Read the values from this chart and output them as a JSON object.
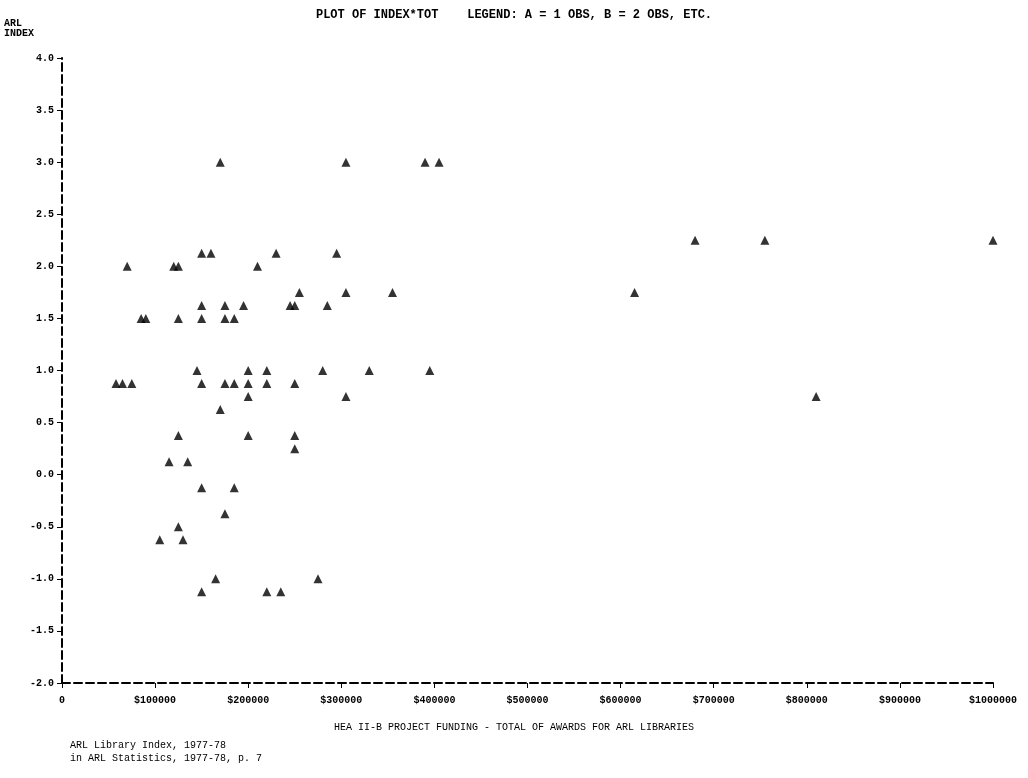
{
  "chart_data": {
    "type": "scatter",
    "title": "PLOT OF INDEX*TOT    LEGEND: A = 1 OBS, B = 2 OBS, ETC.",
    "ylabel": "ARL INDEX",
    "xlabel": "HEA II-B PROJECT FUNDING - TOTAL OF AWARDS FOR ARL LIBRARIES",
    "annotations": [
      "ARL Library Index, 1977-78",
      "in ARL Statistics, 1977-78, p. 7"
    ],
    "series": [
      {
        "color": "#000000",
        "x": [
          170000,
          305000,
          390000,
          405000,
          150000,
          160000,
          230000,
          295000,
          70000,
          120000,
          125000,
          210000,
          255000,
          305000,
          355000,
          150000,
          175000,
          195000,
          245000,
          250000,
          285000,
          85000,
          90000,
          125000,
          150000,
          175000,
          185000,
          145000,
          200000,
          220000,
          280000,
          330000,
          395000,
          58000,
          65000,
          75000,
          150000,
          175000,
          185000,
          200000,
          220000,
          250000,
          200000,
          305000,
          170000,
          125000,
          200000,
          250000,
          250000,
          115000,
          135000,
          150000,
          185000,
          175000,
          125000,
          105000,
          130000,
          165000,
          275000,
          150000,
          220000,
          235000,
          680000,
          755000,
          1000000,
          615000,
          810000
        ],
        "values": [
          3,
          3,
          3,
          3,
          2.125,
          2.125,
          2.125,
          2.125,
          2,
          2,
          2,
          2,
          1.75,
          1.75,
          1.75,
          1.625,
          1.625,
          1.625,
          1.625,
          1.625,
          1.625,
          1.5,
          1.5,
          1.5,
          1.5,
          1.5,
          1.5,
          1,
          1,
          1,
          1,
          1,
          1,
          0.875,
          0.875,
          0.875,
          0.875,
          0.875,
          0.875,
          0.875,
          0.875,
          0.875,
          0.75,
          0.75,
          0.625,
          0.375,
          0.375,
          0.375,
          0.25,
          0.125,
          0.125,
          -0.125,
          -0.125,
          -0.375,
          -0.5,
          -0.625,
          -0.625,
          -1,
          -1,
          -1.125,
          -1.125,
          -1.125,
          2.25,
          2.25,
          2.25,
          1.75,
          0.75
        ]
      }
    ],
    "marker": "triangle",
    "grid": false,
    "xlim": [
      0,
      1000000
    ],
    "xticks": [
      {
        "value": 0,
        "label": "0"
      },
      {
        "value": 100000,
        "label": "$100000"
      },
      {
        "value": 200000,
        "label": "$200000"
      },
      {
        "value": 300000,
        "label": "$300000"
      },
      {
        "value": 400000,
        "label": "$400000"
      },
      {
        "value": 500000,
        "label": "$500000"
      },
      {
        "value": 600000,
        "label": "$600000"
      },
      {
        "value": 700000,
        "label": "$700000"
      },
      {
        "value": 800000,
        "label": "$800000"
      },
      {
        "value": 900000,
        "label": "$900000"
      },
      {
        "value": 1000000,
        "label": "$1000000"
      }
    ],
    "ylim": [
      -2,
      4
    ],
    "yticks": [
      {
        "value": -2,
        "label": "-2.0"
      },
      {
        "value": -1.5,
        "label": "-1.5"
      },
      {
        "value": -1,
        "label": "-1.0"
      },
      {
        "value": -0.5,
        "label": "-0.5"
      },
      {
        "value": 0,
        "label": "0.0"
      },
      {
        "value": 0.5,
        "label": "0.5"
      },
      {
        "value": 1,
        "label": "1.0"
      },
      {
        "value": 1.5,
        "label": "1.5"
      },
      {
        "value": 2,
        "label": "2.0"
      },
      {
        "value": 2.5,
        "label": "2.5"
      },
      {
        "value": 3,
        "label": "3.0"
      },
      {
        "value": 3.5,
        "label": "3.5"
      },
      {
        "value": 4,
        "label": "4.0"
      }
    ]
  }
}
